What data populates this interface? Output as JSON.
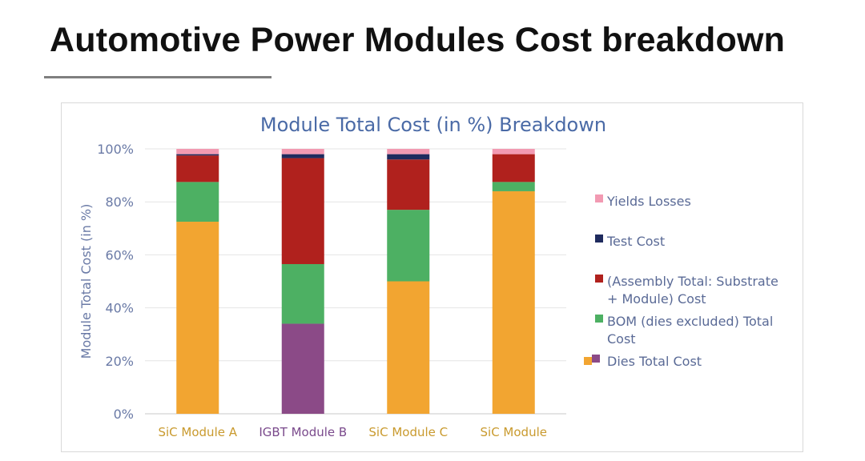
{
  "slide": {
    "title": "Automotive Power Modules Cost breakdown"
  },
  "chart_data": {
    "type": "bar",
    "stacked": true,
    "title": "Module Total Cost (in %) Breakdown",
    "xlabel": "",
    "ylabel": "Module Total Cost (in %)",
    "ylim": [
      0,
      100
    ],
    "y_ticks": [
      "0%",
      "20%",
      "40%",
      "60%",
      "80%",
      "100%"
    ],
    "grid": true,
    "legend_position": "right",
    "categories": [
      "SiC Module A",
      "IGBT Module B",
      "SiC Module C",
      "SiC Module"
    ],
    "category_colors": [
      "#c99a2e",
      "#7a4a8c",
      "#c99a2e",
      "#c99a2e"
    ],
    "series": [
      {
        "name": "Dies Total Cost",
        "color": "#f2a531",
        "color_overrides": {
          "1": "#8b4a87"
        },
        "values": [
          72.5,
          34,
          50,
          84
        ]
      },
      {
        "name": "BOM (dies excluded) Total Cost",
        "color": "#4db063",
        "values": [
          15,
          22.5,
          27,
          3.5
        ]
      },
      {
        "name": "(Assembly Total: Substrate + Module) Cost",
        "color": "#b0211d",
        "values": [
          10,
          40,
          19,
          10.5
        ]
      },
      {
        "name": "Test Cost",
        "color": "#1f2b5e",
        "values": [
          0.5,
          1.5,
          2,
          0
        ]
      },
      {
        "name": "Yields Losses",
        "color": "#f29ab2",
        "values": [
          2,
          2,
          2,
          2
        ]
      }
    ],
    "legend": [
      {
        "lines": [
          "Yields Losses"
        ],
        "color": "#f29ab2"
      },
      {
        "lines": [
          "Test Cost"
        ],
        "color": "#1f2b5e"
      },
      {
        "lines": [
          "(Assembly Total: Substrate",
          "+ Module) Cost"
        ],
        "color": "#b0211d"
      },
      {
        "lines": [
          "BOM (dies excluded) Total",
          "Cost"
        ],
        "color": "#4db063"
      },
      {
        "lines": [
          "Dies Total Cost"
        ],
        "color": "#f2a531",
        "extra_color": "#8b4a87"
      }
    ]
  }
}
